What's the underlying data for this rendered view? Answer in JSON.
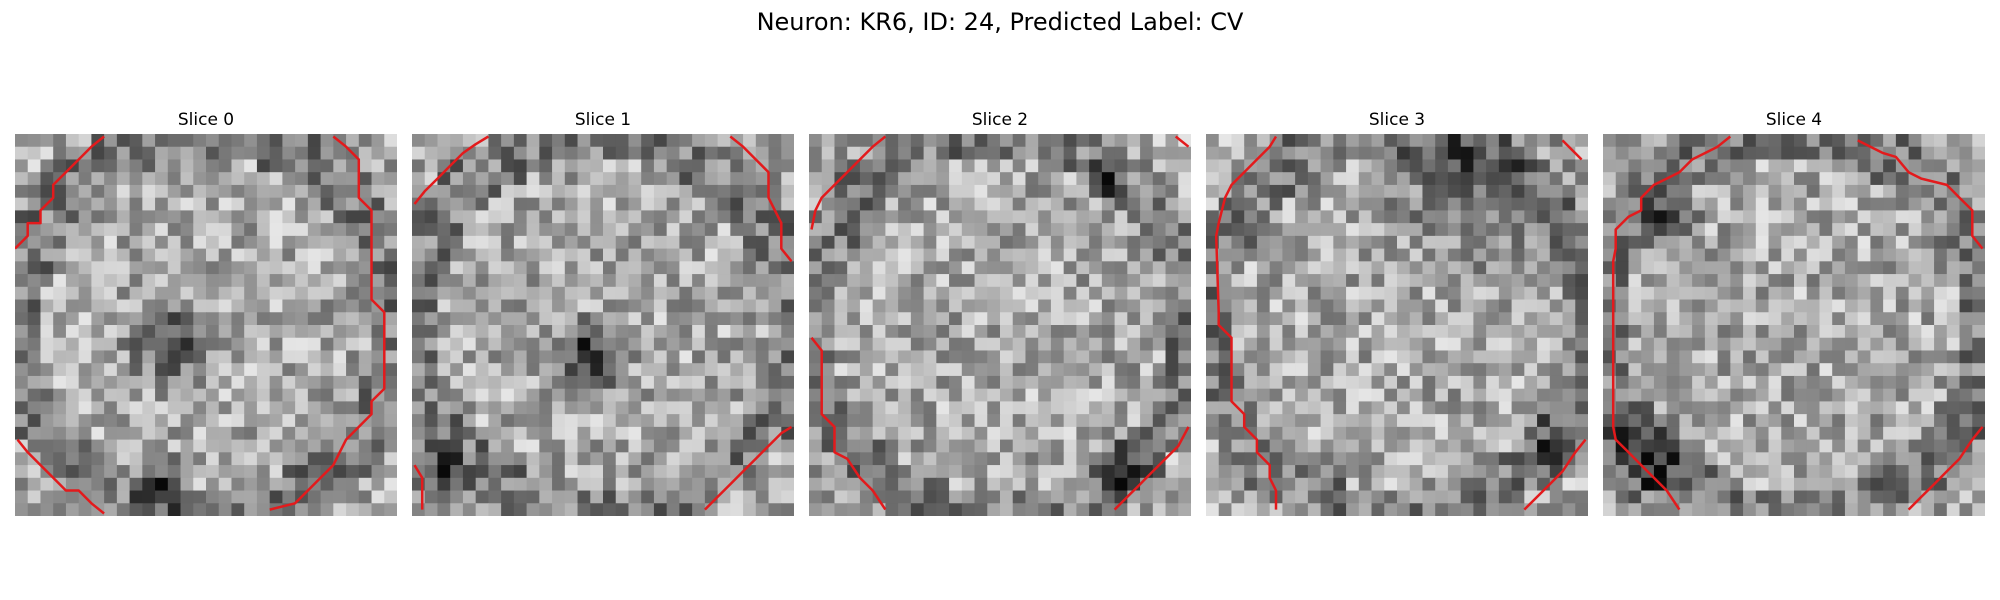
{
  "figure": {
    "title": "Neuron: KR6, ID: 24, Predicted Label: CV",
    "colors": {
      "background": "#ffffff",
      "contour": "#e31a1c",
      "colormap": "grayscale"
    },
    "panels": [
      {
        "label": "Slice 0"
      },
      {
        "label": "Slice 1"
      },
      {
        "label": "Slice 2"
      },
      {
        "label": "Slice 3"
      },
      {
        "label": "Slice 4"
      }
    ]
  }
}
